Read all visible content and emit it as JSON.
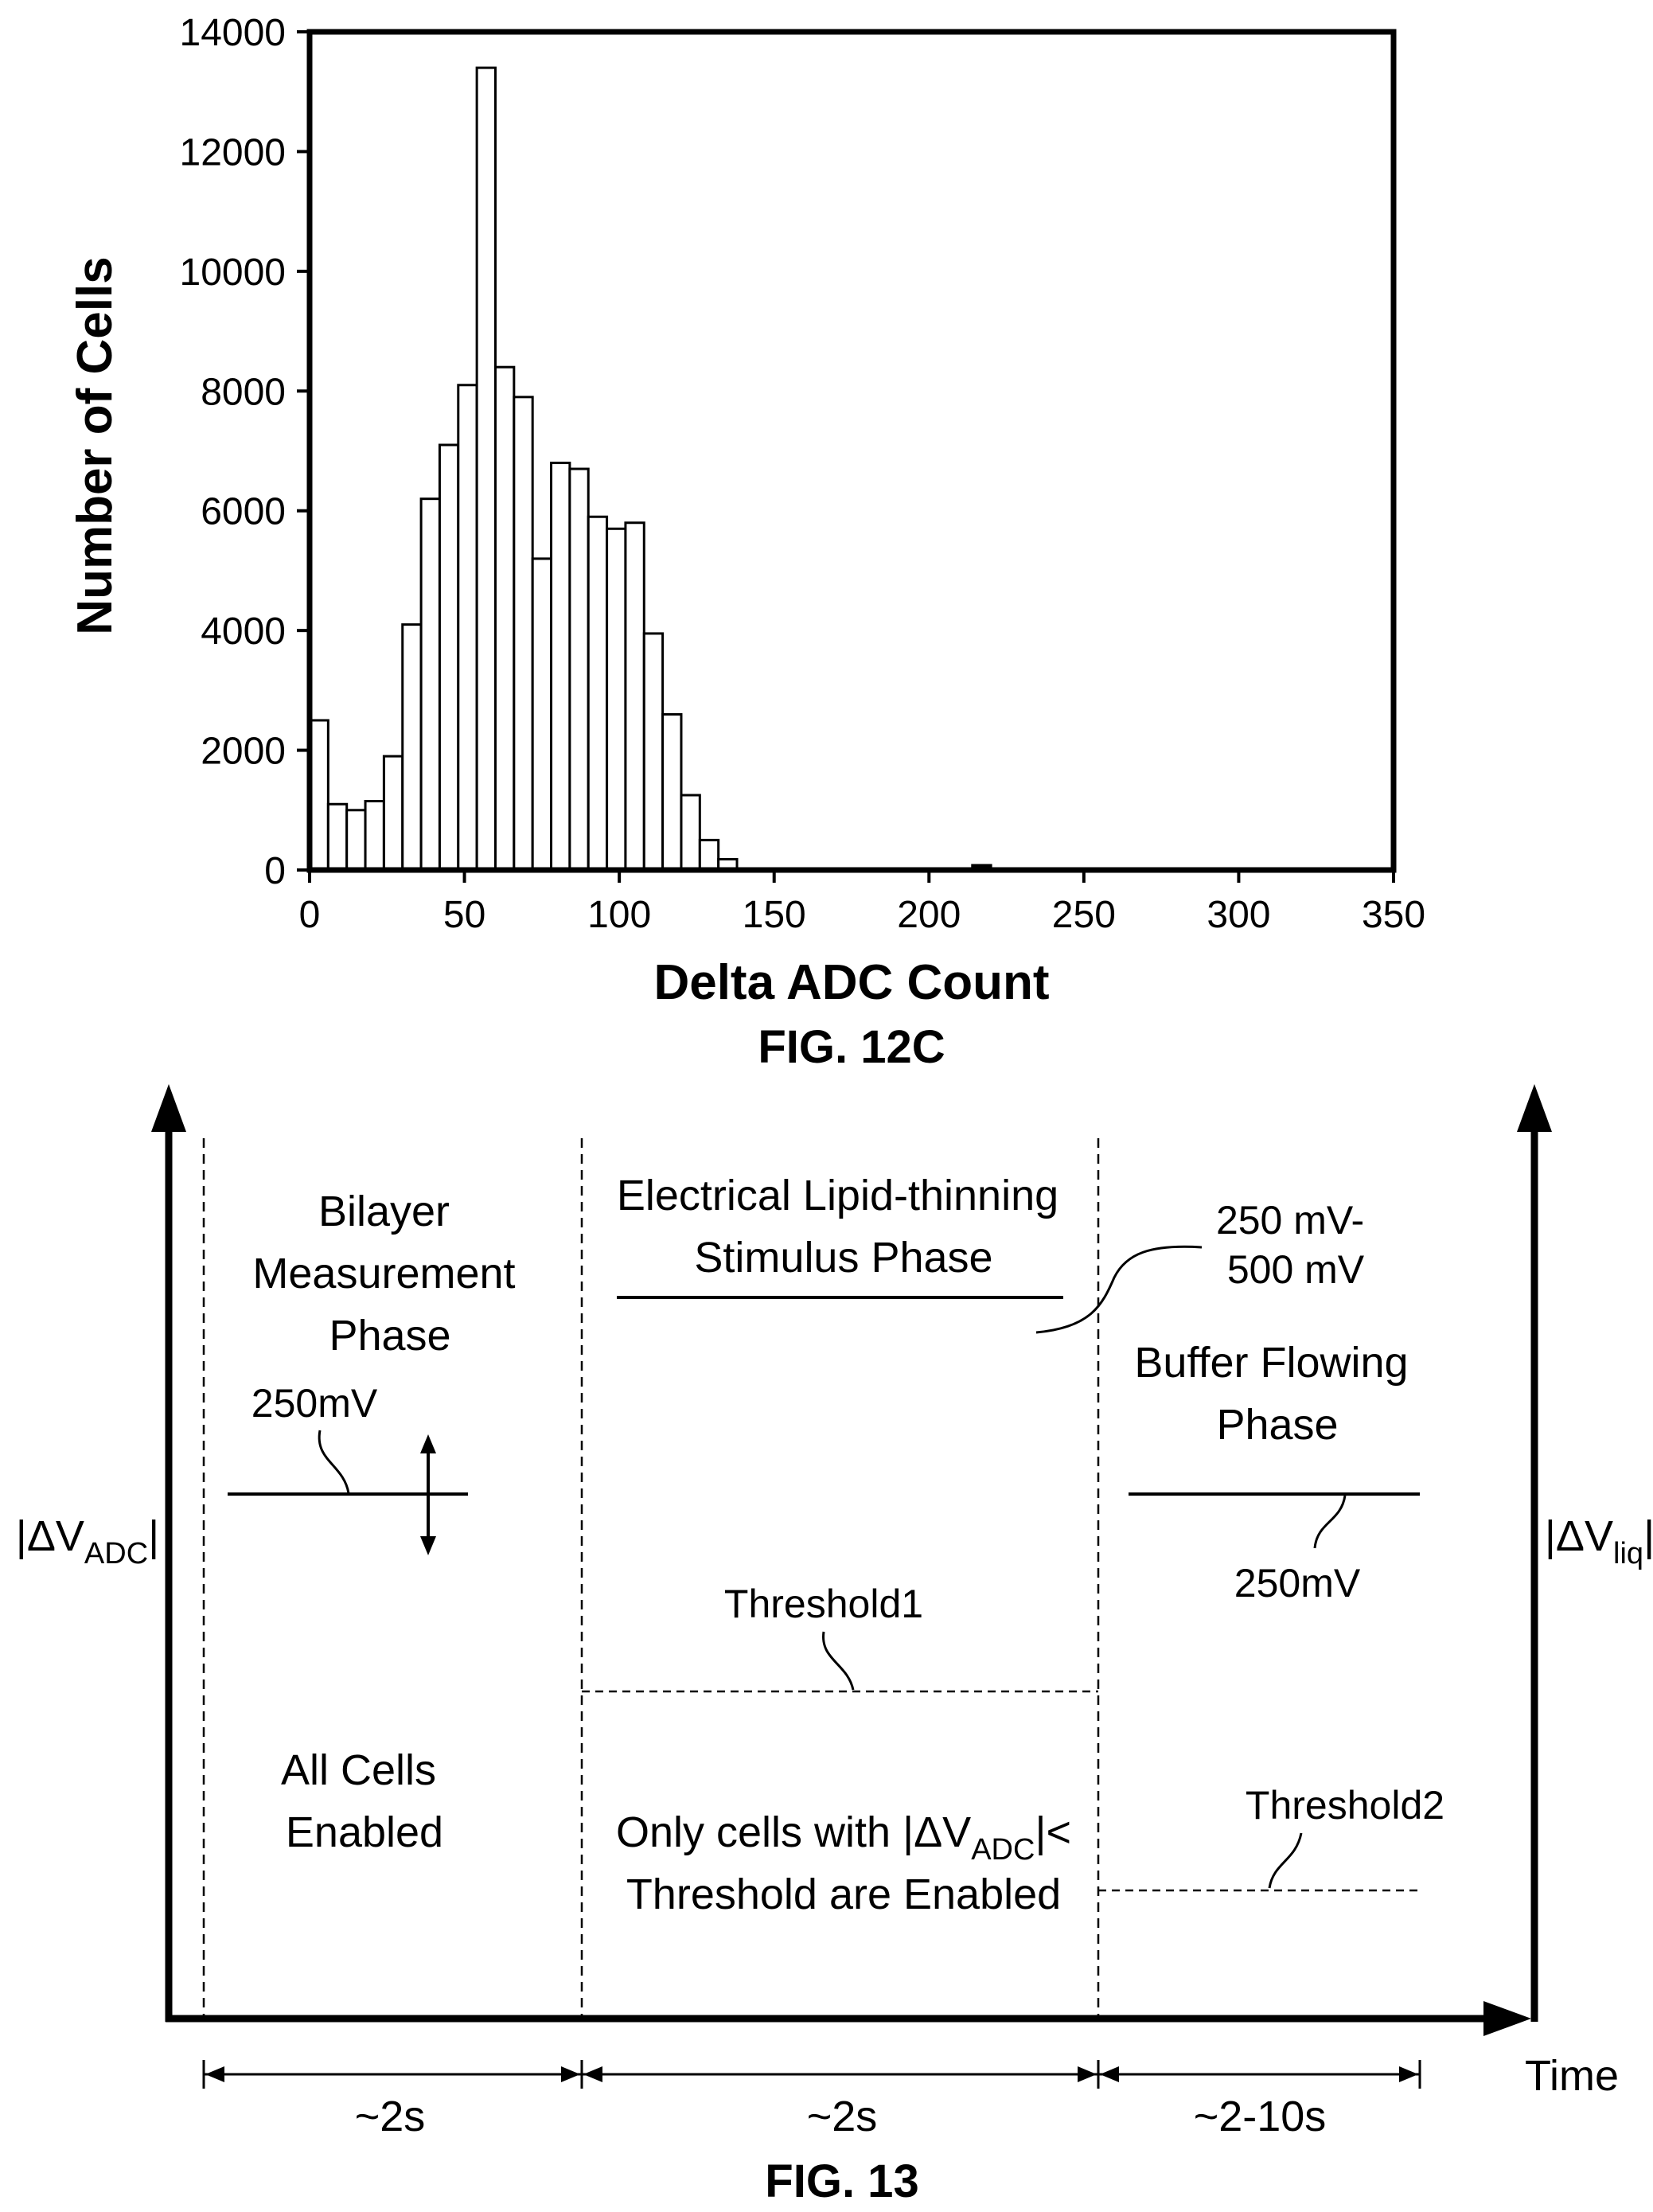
{
  "fig12c": {
    "caption": "FIG. 12C",
    "chart_data": {
      "type": "bar",
      "xlabel": "Delta ADC Count",
      "ylabel": "Number of Cells",
      "xlim": [
        0,
        350
      ],
      "ylim": [
        0,
        14000
      ],
      "x_ticks": [
        "0",
        "50",
        "100",
        "150",
        "200",
        "250",
        "300",
        "350"
      ],
      "y_ticks": [
        "0",
        "2000",
        "4000",
        "6000",
        "8000",
        "10000",
        "12000",
        "14000"
      ],
      "bin_width": 6,
      "bins": [
        {
          "x": 0,
          "value": 2500
        },
        {
          "x": 6,
          "value": 1100
        },
        {
          "x": 12,
          "value": 1000
        },
        {
          "x": 18,
          "value": 1150
        },
        {
          "x": 24,
          "value": 1900
        },
        {
          "x": 30,
          "value": 4100
        },
        {
          "x": 36,
          "value": 6200
        },
        {
          "x": 42,
          "value": 7100
        },
        {
          "x": 48,
          "value": 8100
        },
        {
          "x": 54,
          "value": 13400
        },
        {
          "x": 60,
          "value": 8400
        },
        {
          "x": 66,
          "value": 7900
        },
        {
          "x": 72,
          "value": 5200
        },
        {
          "x": 78,
          "value": 6800
        },
        {
          "x": 84,
          "value": 6700
        },
        {
          "x": 90,
          "value": 5900
        },
        {
          "x": 96,
          "value": 5700
        },
        {
          "x": 102,
          "value": 5800
        },
        {
          "x": 108,
          "value": 3950
        },
        {
          "x": 114,
          "value": 2600
        },
        {
          "x": 120,
          "value": 1250
        },
        {
          "x": 126,
          "value": 500
        },
        {
          "x": 132,
          "value": 180
        },
        {
          "x": 214,
          "value": 80
        }
      ],
      "grid": false,
      "legend": "none"
    }
  },
  "fig13": {
    "caption": "FIG. 13",
    "left_axis": {
      "pre": "|ΔV",
      "sub": "ADC",
      "post": "|"
    },
    "right_axis": {
      "pre": "|ΔV",
      "sub": "liq",
      "post": "|"
    },
    "x_axis_label": "Time",
    "phase1": {
      "title": [
        "Bilayer",
        "Measurement",
        "Phase"
      ],
      "level": "250mV",
      "status": [
        "All Cells",
        "Enabled"
      ],
      "duration": "~2s"
    },
    "phase2": {
      "title": [
        "Electrical Lipid-thinning",
        "Stimulus Phase"
      ],
      "level": [
        "250 mV-",
        "500 mV"
      ],
      "threshold": "Threshold1",
      "status_line1_pre": "Only cells with |ΔV",
      "status_line1_sub": "ADC",
      "status_line1_post": "|<",
      "status_line2": "Threshold are Enabled",
      "duration": "~2s"
    },
    "phase3": {
      "title": [
        "Buffer Flowing",
        "Phase"
      ],
      "level": "250mV",
      "threshold": "Threshold2",
      "duration": "~2-10s"
    }
  }
}
